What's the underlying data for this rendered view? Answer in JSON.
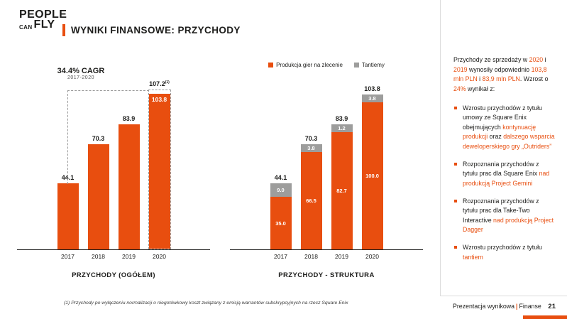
{
  "colors": {
    "accent": "#E84E0F",
    "gray": "#9D9D9C",
    "ink": "#1D1D1B"
  },
  "logo": {
    "line1": "PEOPLE",
    "line2_small": "CAN",
    "line2_large": "FLY"
  },
  "title": "WYNIKI FINANSOWE: PRZYCHODY",
  "chart_data": [
    {
      "type": "bar",
      "title": "PRZYCHODY (OGÓŁEM)",
      "categories": [
        "2017",
        "2018",
        "2019",
        "2020"
      ],
      "values": [
        44.1,
        70.3,
        83.9,
        103.8
      ],
      "value_labels": [
        "44.1",
        "70.3",
        "83.9",
        "103.8"
      ],
      "normalized_value": 107.2,
      "normalized_label": "107.2",
      "normalized_marker": "(1)",
      "cagr_label": "34.4% CAGR",
      "cagr_period": "2017-2020",
      "bar_color": "#E84E0F",
      "ylim": [
        0,
        115
      ],
      "unit": "mln PLN"
    },
    {
      "type": "bar",
      "stacked": true,
      "title": "PRZYCHODY - STRUKTURA",
      "categories": [
        "2017",
        "2018",
        "2019",
        "2020"
      ],
      "series": [
        {
          "name": "Produkcja gier na zlecenie",
          "color": "#E84E0F",
          "values": [
            35.0,
            66.5,
            82.7,
            100.0
          ],
          "labels": [
            "35.0",
            "66.5",
            "82.7",
            "100.0"
          ]
        },
        {
          "name": "Tantiemy",
          "color": "#9D9D9C",
          "values": [
            9.0,
            3.8,
            1.2,
            3.8
          ],
          "labels": [
            "9.0",
            "3.8",
            "1.2",
            "3.8"
          ]
        }
      ],
      "totals": [
        44.1,
        70.3,
        83.9,
        103.8
      ],
      "total_labels": [
        "44.1",
        "70.3",
        "83.9",
        "103.8"
      ],
      "legend_position": "top",
      "ylim": [
        0,
        115
      ],
      "unit": "mln PLN"
    }
  ],
  "sidebar": {
    "intro_segments": [
      {
        "t": "Przychody ze sprzedaży w ",
        "h": false
      },
      {
        "t": "2020",
        "h": true
      },
      {
        "t": " i ",
        "h": false
      },
      {
        "t": "2019",
        "h": true
      },
      {
        "t": " wynosiły odpowiednio ",
        "h": false
      },
      {
        "t": "103,8 mln PLN",
        "h": true
      },
      {
        "t": " i ",
        "h": false
      },
      {
        "t": "83,9 mln PLN",
        "h": true
      },
      {
        "t": ". Wzrost o ",
        "h": false
      },
      {
        "t": "24%",
        "h": true
      },
      {
        "t": " wynikał z:",
        "h": false
      }
    ],
    "bullets": [
      [
        {
          "t": "Wzrostu przychodów z tytułu umowy ze Square Enix obejmujących ",
          "h": false
        },
        {
          "t": "kontynuację produkcji",
          "h": true
        },
        {
          "t": " oraz ",
          "h": false
        },
        {
          "t": "dalszego wsparcia deweloperskiego gry „Outriders”",
          "h": true
        }
      ],
      [
        {
          "t": "Rozpoznania przychodów z tytułu prac dla Square Enix ",
          "h": false
        },
        {
          "t": "nad produkcją Project Gemini",
          "h": true
        }
      ],
      [
        {
          "t": "Rozpoznania przychodów z tytułu prac dla Take-Two Interactive ",
          "h": false
        },
        {
          "t": "nad produkcją Project Dagger",
          "h": true
        }
      ],
      [
        {
          "t": "Wzrostu przychodów z tytułu ",
          "h": false
        },
        {
          "t": "tantiem",
          "h": true
        }
      ]
    ]
  },
  "footnote": "(1) Przychody po wyłączeniu normalizacji o niegotówkowy koszt związany z emisją warrantów subskrypcyjnych na rzecz Square Enix",
  "footer": {
    "label": "Prezentacja wynikowa",
    "separator": "|",
    "section": "Finanse",
    "page": "21"
  }
}
